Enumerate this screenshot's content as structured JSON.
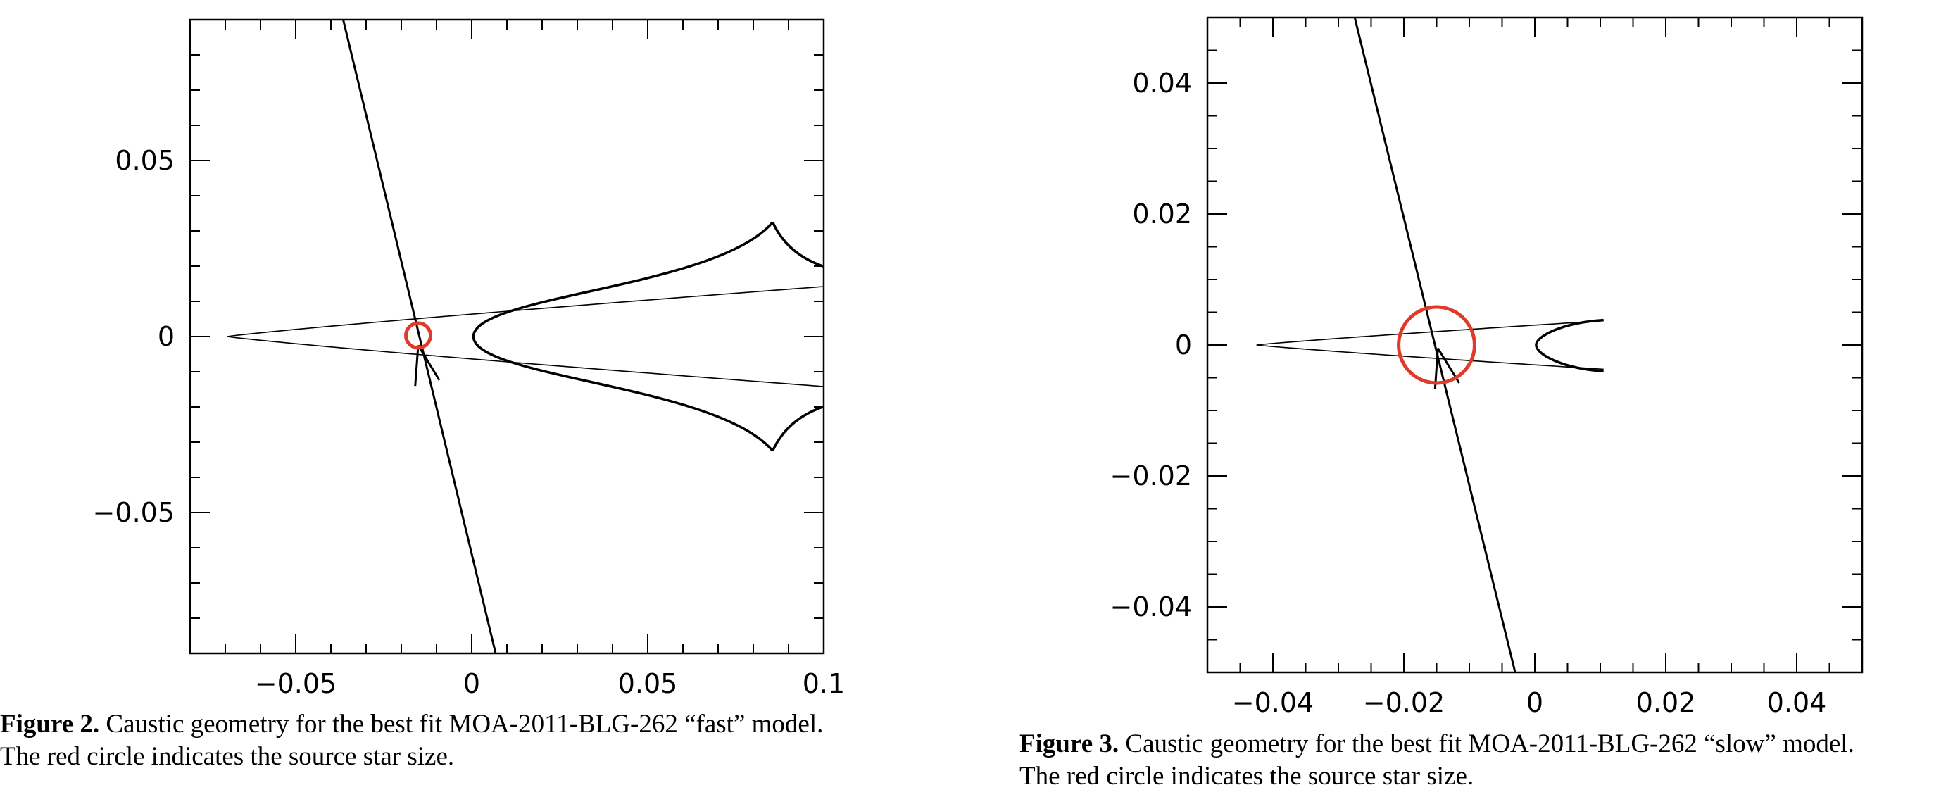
{
  "chart_data": [
    {
      "type": "line",
      "figure": "Figure 2.",
      "caption_line1": "Caustic geometry for the best fit MOA-2011-BLG-262 “fast” model.",
      "caption_line2": "The red circle indicates the source star size.",
      "xlim": [
        -0.08,
        0.1
      ],
      "ylim": [
        -0.09,
        0.09
      ],
      "x_ticks": [
        -0.05,
        0,
        0.05,
        0.1
      ],
      "x_tick_labels": [
        "−0.05",
        "0",
        "0.05",
        "0.1"
      ],
      "y_ticks": [
        -0.05,
        0,
        0.05
      ],
      "y_tick_labels": [
        "−0.05",
        "0",
        "0.05"
      ],
      "minor_step": 0.01,
      "caustic_tip_x": -0.0695,
      "caustic_end": [
        0.1,
        0.0142
      ],
      "inner_caustic": {
        "vertex_x": 0.0005,
        "cusp": [
          0.0855,
          0.0325
        ],
        "end": [
          0.1,
          0.0199
        ],
        "mid": [
          0.05,
          0.0138
        ]
      },
      "trajectory": [
        [
          -0.0365,
          0.09
        ],
        [
          0.0068,
          -0.09
        ]
      ],
      "source_circle": {
        "center": [
          -0.0152,
          0.0003
        ],
        "radius": 0.0035,
        "color": "#e03a2a"
      },
      "arrow_tip": [
        -0.0152,
        -0.0025
      ]
    },
    {
      "type": "line",
      "figure": "Figure 3.",
      "caption_line1": "Caustic geometry for the best fit MOA-2011-BLG-262 “slow” model.",
      "caption_line2": "The red circle indicates the source star size.",
      "xlim": [
        -0.05,
        0.05
      ],
      "ylim": [
        -0.05,
        0.05
      ],
      "x_ticks": [
        -0.04,
        -0.02,
        0,
        0.02,
        0.04
      ],
      "x_tick_labels": [
        "−0.04",
        "−0.02",
        "0",
        "0.02",
        "0.04"
      ],
      "y_ticks": [
        -0.04,
        -0.02,
        0,
        0.02,
        0.04
      ],
      "y_tick_labels": [
        "−0.04",
        "−0.02",
        "0",
        "0.02",
        "0.04"
      ],
      "minor_step": 0.005,
      "caustic_tip_x": -0.0425,
      "caustic_end": [
        0.0105,
        0.0037
      ],
      "inner_caustic": {
        "vertex_x": 0.0002,
        "top_end": [
          0.0105,
          0.0038
        ],
        "bottom_end": [
          0.0105,
          -0.004
        ]
      },
      "trajectory": [
        [
          -0.0275,
          0.05
        ],
        [
          -0.003,
          -0.05
        ]
      ],
      "source_circle": {
        "center": [
          -0.015,
          0.0
        ],
        "radius": 0.0058,
        "color": "#e03a2a"
      },
      "arrow_tip": [
        -0.0148,
        -0.0005
      ]
    }
  ]
}
